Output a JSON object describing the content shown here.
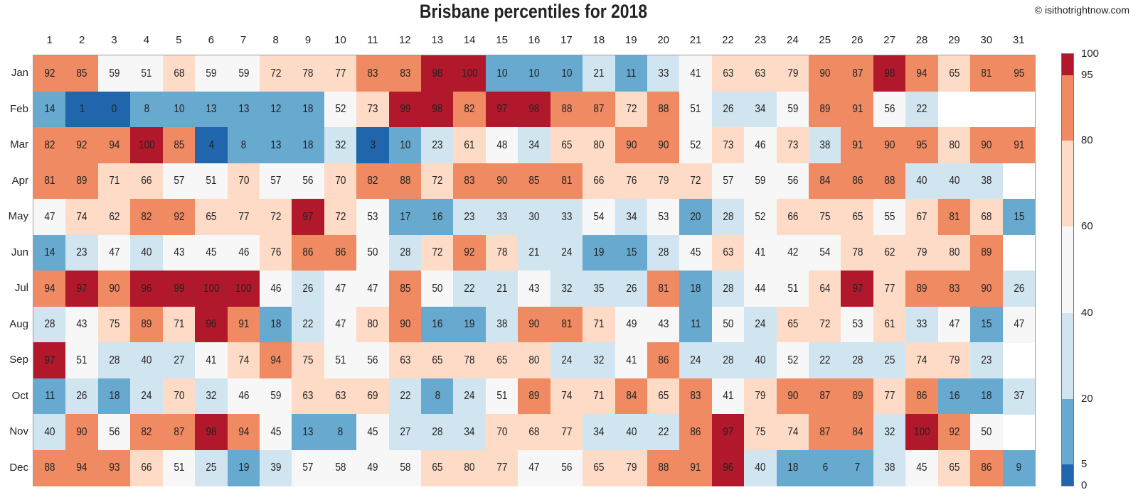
{
  "chart_data": {
    "type": "heatmap",
    "title": "Brisbane percentiles for 2018",
    "credit": "© isithotrightnow.com",
    "x_categories": [
      "1",
      "2",
      "3",
      "4",
      "5",
      "6",
      "7",
      "8",
      "9",
      "10",
      "11",
      "12",
      "13",
      "14",
      "15",
      "16",
      "17",
      "18",
      "19",
      "20",
      "21",
      "22",
      "23",
      "24",
      "25",
      "26",
      "27",
      "28",
      "29",
      "30",
      "31"
    ],
    "y_categories": [
      "Jan",
      "Feb",
      "Mar",
      "Apr",
      "May",
      "Jun",
      "Jul",
      "Aug",
      "Sep",
      "Oct",
      "Nov",
      "Dec"
    ],
    "values": [
      [
        92,
        85,
        59,
        51,
        68,
        59,
        59,
        72,
        78,
        77,
        83,
        83,
        98,
        100,
        10,
        10,
        10,
        21,
        11,
        33,
        41,
        63,
        63,
        79,
        90,
        87,
        98,
        94,
        65,
        81,
        95
      ],
      [
        14,
        1,
        0,
        8,
        10,
        13,
        13,
        12,
        18,
        52,
        73,
        99,
        98,
        82,
        97,
        98,
        88,
        87,
        72,
        88,
        51,
        26,
        34,
        59,
        89,
        91,
        56,
        22
      ],
      [
        82,
        92,
        94,
        100,
        85,
        4,
        8,
        13,
        18,
        32,
        3,
        10,
        23,
        61,
        48,
        34,
        65,
        80,
        90,
        90,
        52,
        73,
        46,
        73,
        38,
        91,
        90,
        95,
        80,
        90,
        91
      ],
      [
        81,
        89,
        71,
        66,
        57,
        51,
        70,
        57,
        56,
        70,
        82,
        88,
        72,
        83,
        90,
        85,
        81,
        66,
        76,
        79,
        72,
        57,
        59,
        56,
        84,
        86,
        88,
        40,
        40,
        38
      ],
      [
        47,
        74,
        62,
        82,
        92,
        65,
        77,
        72,
        97,
        72,
        53,
        17,
        16,
        23,
        33,
        30,
        33,
        54,
        34,
        53,
        20,
        28,
        52,
        66,
        75,
        65,
        55,
        67,
        81,
        68,
        15
      ],
      [
        14,
        23,
        47,
        40,
        43,
        45,
        46,
        76,
        86,
        86,
        50,
        28,
        72,
        92,
        78,
        21,
        24,
        19,
        15,
        28,
        45,
        63,
        41,
        42,
        54,
        78,
        62,
        79,
        80,
        89
      ],
      [
        94,
        97,
        90,
        96,
        99,
        100,
        100,
        46,
        26,
        47,
        47,
        85,
        50,
        22,
        21,
        43,
        32,
        35,
        26,
        81,
        18,
        28,
        44,
        51,
        64,
        97,
        77,
        89,
        83,
        90,
        26
      ],
      [
        28,
        43,
        75,
        89,
        71,
        96,
        91,
        18,
        22,
        47,
        80,
        90,
        16,
        19,
        38,
        90,
        81,
        71,
        49,
        43,
        11,
        50,
        24,
        65,
        72,
        53,
        61,
        33,
        47,
        15,
        47
      ],
      [
        97,
        51,
        28,
        40,
        27,
        41,
        74,
        94,
        75,
        51,
        56,
        63,
        65,
        78,
        65,
        80,
        24,
        32,
        41,
        86,
        24,
        28,
        40,
        52,
        22,
        28,
        25,
        74,
        79,
        23
      ],
      [
        11,
        26,
        18,
        24,
        70,
        32,
        46,
        59,
        63,
        63,
        69,
        22,
        8,
        24,
        51,
        89,
        74,
        71,
        84,
        65,
        83,
        41,
        79,
        90,
        87,
        89,
        77,
        86,
        16,
        18,
        37
      ],
      [
        40,
        90,
        56,
        82,
        87,
        98,
        94,
        45,
        13,
        8,
        45,
        27,
        28,
        34,
        70,
        68,
        77,
        34,
        40,
        22,
        86,
        97,
        75,
        74,
        87,
        84,
        32,
        100,
        92,
        50
      ],
      [
        88,
        94,
        93,
        66,
        51,
        25,
        19,
        39,
        57,
        58,
        49,
        58,
        65,
        80,
        77,
        47,
        56,
        65,
        79,
        88,
        91,
        96,
        40,
        18,
        6,
        7,
        38,
        45,
        65,
        86,
        9
      ]
    ],
    "color_bins": [
      {
        "min": 0,
        "max": 5,
        "color": "#2166ac"
      },
      {
        "min": 5,
        "max": 20,
        "color": "#67a9cf"
      },
      {
        "min": 20,
        "max": 40,
        "color": "#d1e5f0"
      },
      {
        "min": 40,
        "max": 60,
        "color": "#f7f7f7"
      },
      {
        "min": 60,
        "max": 80,
        "color": "#fddbc7"
      },
      {
        "min": 80,
        "max": 95,
        "color": "#ef8a62"
      },
      {
        "min": 95,
        "max": 100,
        "color": "#b2182b"
      }
    ],
    "colorbar_ticks": [
      "100",
      "95",
      "80",
      "60",
      "40",
      "20",
      "5",
      "0"
    ],
    "colorbar_range": [
      0,
      100
    ],
    "legend": "right colorbar",
    "grid": false
  }
}
